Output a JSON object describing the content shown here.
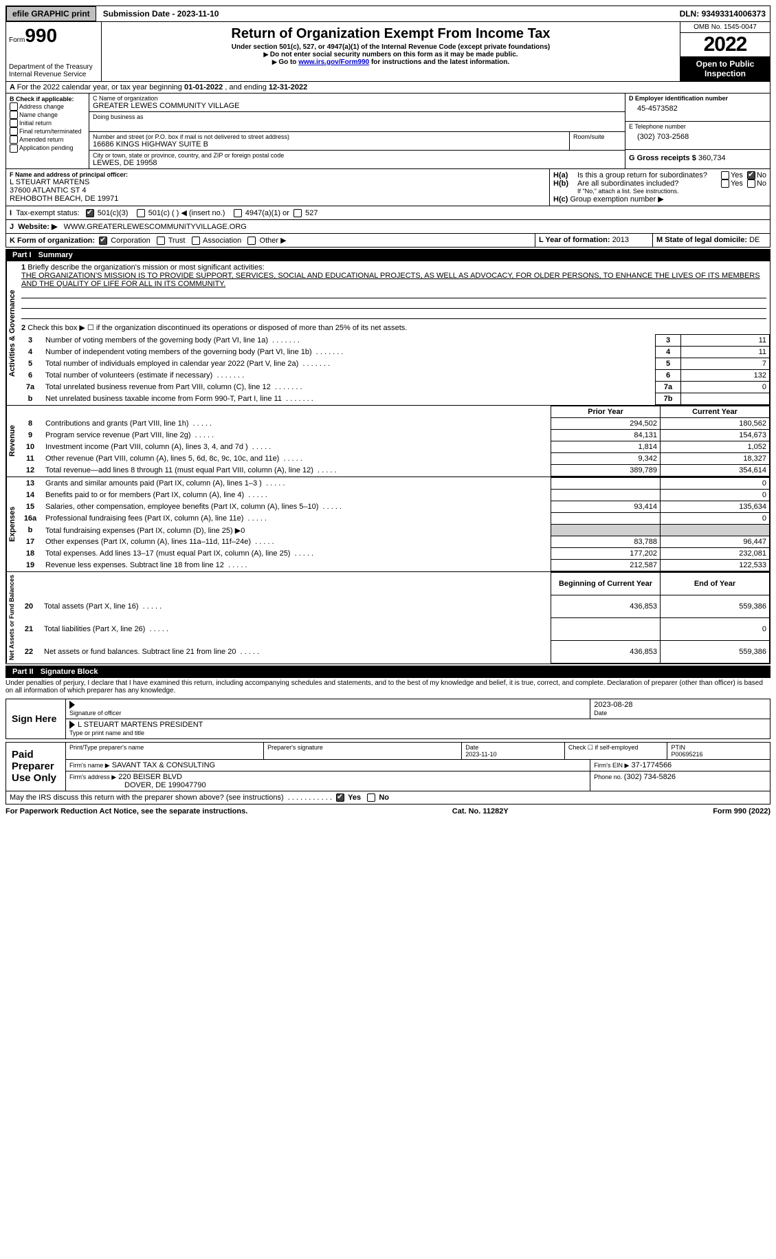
{
  "topbar": {
    "efile": "efile GRAPHIC print",
    "subdate_lbl": "Submission Date - ",
    "subdate": "2023-11-10",
    "dln_lbl": "DLN: ",
    "dln": "93493314006373"
  },
  "header": {
    "form_label": "Form",
    "form_no": "990",
    "dept": "Department of the Treasury\nInternal Revenue Service",
    "title": "Return of Organization Exempt From Income Tax",
    "sub1": "Under section 501(c), 527, or 4947(a)(1) of the Internal Revenue Code (except private foundations)",
    "sub2": "Do not enter social security numbers on this form as it may be made public.",
    "sub3_pre": "Go to ",
    "sub3_link": "www.irs.gov/Form990",
    "sub3_post": " for instructions and the latest information.",
    "omb": "OMB No. 1545-0047",
    "year": "2022",
    "inspect": "Open to Public Inspection"
  },
  "A": {
    "line": "For the 2022 calendar year, or tax year beginning ",
    "begin": "01-01-2022",
    "mid": " , and ending ",
    "end": "12-31-2022"
  },
  "B": {
    "hdr": "B Check if applicable:",
    "opts": [
      "Address change",
      "Name change",
      "Initial return",
      "Final return/terminated",
      "Amended return",
      "Application pending"
    ]
  },
  "C": {
    "name_lbl": "C Name of organization",
    "name": "GREATER LEWES COMMUNITY VILLAGE",
    "dba_lbl": "Doing business as",
    "dba": "",
    "addr_lbl": "Number and street (or P.O. box if mail is not delivered to street address)",
    "room_lbl": "Room/suite",
    "addr": "16686 KINGS HIGHWAY SUITE B",
    "city_lbl": "City or town, state or province, country, and ZIP or foreign postal code",
    "city": "LEWES, DE  19958"
  },
  "D": {
    "lbl": "D Employer identification number",
    "val": "45-4573582"
  },
  "E": {
    "lbl": "E Telephone number",
    "val": "(302) 703-2568"
  },
  "G": {
    "lbl": "G Gross receipts $ ",
    "val": "360,734"
  },
  "F": {
    "lbl": "F  Name and address of principal officer:",
    "name": "L STEUART MARTENS",
    "addr1": "37600 ATLANTIC ST 4",
    "addr2": "REHOBOTH BEACH, DE  19971"
  },
  "H": {
    "a": "Is this a group return for subordinates?",
    "a_yes": "Yes",
    "a_no": "No",
    "b": "Are all subordinates included?",
    "b_note": "If \"No,\" attach a list. See instructions.",
    "c": "Group exemption number ▶"
  },
  "I": {
    "lbl": "Tax-exempt status:",
    "c3": "501(c)(3)",
    "c": "501(c) (  ) ◀ (insert no.)",
    "a4947": "4947(a)(1) or",
    "s527": "527"
  },
  "J": {
    "lbl": "Website: ▶",
    "val": "WWW.GREATERLEWESCOMMUNITYVILLAGE.ORG"
  },
  "K": {
    "lbl": "K Form of organization:",
    "corp": "Corporation",
    "trust": "Trust",
    "assoc": "Association",
    "other": "Other ▶"
  },
  "L": {
    "lbl": "L Year of formation: ",
    "val": "2013"
  },
  "M": {
    "lbl": "M State of legal domicile: ",
    "val": "DE"
  },
  "part1": {
    "hdr": "Part I",
    "title": "Summary"
  },
  "summary": {
    "q1": "Briefly describe the organization's mission or most significant activities:",
    "mission": "THE ORGANIZATION'S MISSION IS TO PROVIDE SUPPORT, SERVICES, SOCIAL AND EDUCATIONAL PROJECTS, AS WELL AS ADVOCACY, FOR OLDER PERSONS, TO ENHANCE THE LIVES OF ITS MEMBERS AND THE QUALITY OF LIFE FOR ALL IN ITS COMMUNITY.",
    "q2": "Check this box ▶ ☐  if the organization discontinued its operations or disposed of more than 25% of its net assets.",
    "rows": [
      {
        "n": "3",
        "t": "Number of voting members of the governing body (Part VI, line 1a)",
        "box": "3",
        "v": "11"
      },
      {
        "n": "4",
        "t": "Number of independent voting members of the governing body (Part VI, line 1b)",
        "box": "4",
        "v": "11"
      },
      {
        "n": "5",
        "t": "Total number of individuals employed in calendar year 2022 (Part V, line 2a)",
        "box": "5",
        "v": "7"
      },
      {
        "n": "6",
        "t": "Total number of volunteers (estimate if necessary)",
        "box": "6",
        "v": "132"
      },
      {
        "n": "7a",
        "t": "Total unrelated business revenue from Part VIII, column (C), line 12",
        "box": "7a",
        "v": "0"
      },
      {
        "n": "b",
        "t": "Net unrelated business taxable income from Form 990-T, Part I, line 11",
        "box": "7b",
        "v": ""
      }
    ],
    "py": "Prior Year",
    "cy": "Current Year",
    "rev_lbl": "Revenue",
    "rev": [
      {
        "n": "8",
        "t": "Contributions and grants (Part VIII, line 1h)",
        "p": "294,502",
        "c": "180,562"
      },
      {
        "n": "9",
        "t": "Program service revenue (Part VIII, line 2g)",
        "p": "84,131",
        "c": "154,673"
      },
      {
        "n": "10",
        "t": "Investment income (Part VIII, column (A), lines 3, 4, and 7d )",
        "p": "1,814",
        "c": "1,052"
      },
      {
        "n": "11",
        "t": "Other revenue (Part VIII, column (A), lines 5, 6d, 8c, 9c, 10c, and 11e)",
        "p": "9,342",
        "c": "18,327"
      },
      {
        "n": "12",
        "t": "Total revenue—add lines 8 through 11 (must equal Part VIII, column (A), line 12)",
        "p": "389,789",
        "c": "354,614"
      }
    ],
    "exp_lbl": "Expenses",
    "exp": [
      {
        "n": "13",
        "t": "Grants and similar amounts paid (Part IX, column (A), lines 1–3 )",
        "p": "",
        "c": "0"
      },
      {
        "n": "14",
        "t": "Benefits paid to or for members (Part IX, column (A), line 4)",
        "p": "",
        "c": "0"
      },
      {
        "n": "15",
        "t": "Salaries, other compensation, employee benefits (Part IX, column (A), lines 5–10)",
        "p": "93,414",
        "c": "135,634"
      },
      {
        "n": "16a",
        "t": "Professional fundraising fees (Part IX, column (A), line 11e)",
        "p": "",
        "c": "0"
      },
      {
        "n": "b",
        "t": "Total fundraising expenses (Part IX, column (D), line 25) ▶0",
        "p": null,
        "c": null,
        "shade": true
      },
      {
        "n": "17",
        "t": "Other expenses (Part IX, column (A), lines 11a–11d, 11f–24e)",
        "p": "83,788",
        "c": "96,447"
      },
      {
        "n": "18",
        "t": "Total expenses. Add lines 13–17 (must equal Part IX, column (A), line 25)",
        "p": "177,202",
        "c": "232,081"
      },
      {
        "n": "19",
        "t": "Revenue less expenses. Subtract line 18 from line 12",
        "p": "212,587",
        "c": "122,533"
      }
    ],
    "na_lbl": "Net Assets or Fund Balances",
    "boy": "Beginning of Current Year",
    "eoy": "End of Year",
    "na": [
      {
        "n": "20",
        "t": "Total assets (Part X, line 16)",
        "p": "436,853",
        "c": "559,386"
      },
      {
        "n": "21",
        "t": "Total liabilities (Part X, line 26)",
        "p": "",
        "c": "0"
      },
      {
        "n": "22",
        "t": "Net assets or fund balances. Subtract line 21 from line 20",
        "p": "436,853",
        "c": "559,386"
      }
    ],
    "gov_lbl": "Activities & Governance"
  },
  "part2": {
    "hdr": "Part II",
    "title": "Signature Block",
    "decl": "Under penalties of perjury, I declare that I have examined this return, including accompanying schedules and statements, and to the best of my knowledge and belief, it is true, correct, and complete. Declaration of preparer (other than officer) is based on all information of which preparer has any knowledge."
  },
  "sign": {
    "here": "Sign Here",
    "sig_lbl": "Signature of officer",
    "date_lbl": "Date",
    "date": "2023-08-28",
    "name": "L STEUART MARTENS  PRESIDENT",
    "name_lbl": "Type or print name and title"
  },
  "paid": {
    "here": "Paid Preparer Use Only",
    "pname_lbl": "Print/Type preparer's name",
    "psig_lbl": "Preparer's signature",
    "pdate_lbl": "Date",
    "pdate": "2023-11-10",
    "self_lbl": "Check ☐ if self-employed",
    "ptin_lbl": "PTIN",
    "ptin": "P00695216",
    "firm_lbl": "Firm's name  ▶",
    "firm": "SAVANT TAX & CONSULTING",
    "ein_lbl": "Firm's EIN ▶",
    "ein": "37-1774566",
    "addr_lbl": "Firm's address ▶",
    "addr1": "220 BEISER BLVD",
    "addr2": "DOVER, DE  199047790",
    "phone_lbl": "Phone no. ",
    "phone": "(302) 734-5826"
  },
  "discuss": {
    "q": "May the IRS discuss this return with the preparer shown above? (see instructions)",
    "yes": "Yes",
    "no": "No"
  },
  "footer": {
    "l": "For Paperwork Reduction Act Notice, see the separate instructions.",
    "m": "Cat. No. 11282Y",
    "r": "Form 990 (2022)"
  }
}
